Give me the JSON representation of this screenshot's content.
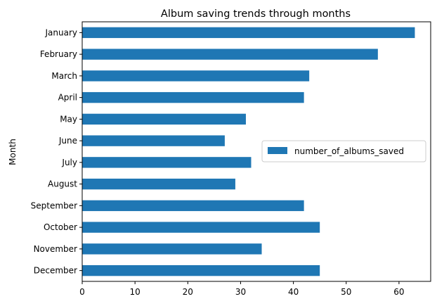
{
  "chart_data": {
    "type": "bar",
    "orientation": "horizontal",
    "title": "Album saving trends through months",
    "xlabel": "",
    "ylabel": "Month",
    "categories": [
      "January",
      "February",
      "March",
      "April",
      "May",
      "June",
      "July",
      "August",
      "September",
      "October",
      "November",
      "December"
    ],
    "series": [
      {
        "name": "number_of_albums_saved",
        "values": [
          63,
          56,
          43,
          42,
          31,
          27,
          32,
          29,
          42,
          45,
          34,
          45
        ]
      }
    ],
    "xlim": [
      0,
      66
    ],
    "xticks": [
      0,
      10,
      20,
      30,
      40,
      50,
      60
    ],
    "grid": false,
    "legend_position": "center-right",
    "colors": {
      "bar": "#1f77b4"
    }
  }
}
